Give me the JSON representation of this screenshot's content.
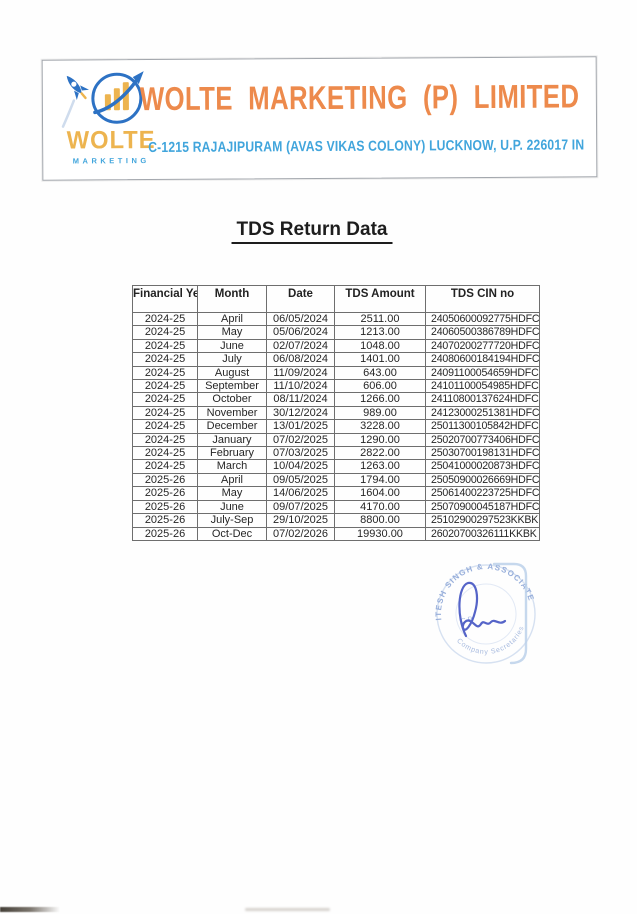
{
  "colors": {
    "brand-orange": "#ED8A4C",
    "brand-blue": "#41A5DC",
    "brand-gold": "#EDB44F",
    "logo-blue": "#2D72C4",
    "stamp-blue": "#8FA8D8",
    "signature-blue": "#3D4EC0",
    "table-line": "#4F4F4F",
    "text-dark": "#262626"
  },
  "letterhead": {
    "company_name": "WOLTE MARKETING (P) LIMITED",
    "address": "C-1215 RAJAJIPURAM (AVAS VIKAS COLONY) LUCKNOW, U.P. 226017 IN",
    "logo": {
      "brand": "WOLTE",
      "tagline": "MARKETING"
    }
  },
  "document": {
    "title": "TDS Return Data"
  },
  "table": {
    "headers": [
      "Financial Year",
      "Month",
      "Date",
      "TDS Amount",
      "TDS CIN no"
    ],
    "header_keys": [
      "financial-year",
      "month",
      "date",
      "tds-amount",
      "tds-cin"
    ],
    "rows": [
      [
        "2024-25",
        "April",
        "06/05/2024",
        "2511.00",
        "24050600092775HDFC"
      ],
      [
        "2024-25",
        "May",
        "05/06/2024",
        "1213.00",
        "24060500386789HDFC"
      ],
      [
        "2024-25",
        "June",
        "02/07/2024",
        "1048.00",
        "24070200277720HDFC"
      ],
      [
        "2024-25",
        "July",
        "06/08/2024",
        "1401.00",
        "24080600184194HDFC"
      ],
      [
        "2024-25",
        "August",
        "11/09/2024",
        "643.00",
        "24091100054659HDFC"
      ],
      [
        "2024-25",
        "September",
        "11/10/2024",
        "606.00",
        "24101100054985HDFC"
      ],
      [
        "2024-25",
        "October",
        "08/11/2024",
        "1266.00",
        "24110800137624HDFC"
      ],
      [
        "2024-25",
        "November",
        "30/12/2024",
        "989.00",
        "24123000251381HDFC"
      ],
      [
        "2024-25",
        "December",
        "13/01/2025",
        "3228.00",
        "25011300105842HDFC"
      ],
      [
        "2024-25",
        "January",
        "07/02/2025",
        "1290.00",
        "25020700773406HDFC"
      ],
      [
        "2024-25",
        "February",
        "07/03/2025",
        "2822.00",
        "25030700198131HDFC"
      ],
      [
        "2024-25",
        "March",
        "10/04/2025",
        "1263.00",
        "25041000020873HDFC"
      ],
      [
        "2025-26",
        "April",
        "09/05/2025",
        "1794.00",
        "25050900026669HDFC"
      ],
      [
        "2025-26",
        "May",
        "14/06/2025",
        "1604.00",
        "25061400223725HDFC"
      ],
      [
        "2025-26",
        "June",
        "09/07/2025",
        "4170.00",
        "25070900045187HDFC"
      ],
      [
        "2025-26",
        "July-Sep",
        "29/10/2025",
        "8800.00",
        "25102900297523KKBK"
      ],
      [
        "2025-26",
        "Oct-Dec",
        "07/02/2026",
        "19930.00",
        "26020700326111KKBK"
      ]
    ]
  },
  "stamp": {
    "arc_top": "HITESH SINGH & ASSOCIATES",
    "arc_bottom": "Company Secretaries",
    "center_text": "C P"
  }
}
